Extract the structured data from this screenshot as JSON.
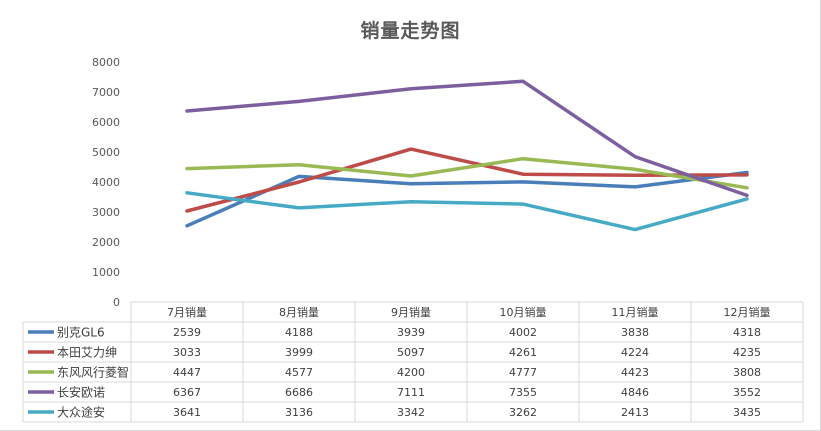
{
  "chart_data": {
    "type": "line",
    "title": "销量走势图",
    "categories": [
      "7月销量",
      "8月销量",
      "9月销量",
      "10月销量",
      "11月销量",
      "12月销量"
    ],
    "ylim": [
      0,
      8000
    ],
    "yticks": [
      0,
      1000,
      2000,
      3000,
      4000,
      5000,
      6000,
      7000,
      8000
    ],
    "grid": false,
    "legend": "data-table",
    "series": [
      {
        "name": "别克GL6",
        "color": "#4a7ebb",
        "values": [
          2539,
          4188,
          3939,
          4002,
          3838,
          4318
        ]
      },
      {
        "name": "本田艾力绅",
        "color": "#be4b48",
        "values": [
          3033,
          3999,
          5097,
          4261,
          4224,
          4235
        ]
      },
      {
        "name": "东风风行菱智",
        "color": "#98b954",
        "values": [
          4447,
          4577,
          4200,
          4777,
          4423,
          3808
        ]
      },
      {
        "name": "长安欧诺",
        "color": "#7d5fa0",
        "values": [
          6367,
          6686,
          7111,
          7355,
          4846,
          3552
        ]
      },
      {
        "name": "大众途安",
        "color": "#46aac5",
        "values": [
          3641,
          3136,
          3342,
          3262,
          2413,
          3435
        ]
      }
    ]
  }
}
